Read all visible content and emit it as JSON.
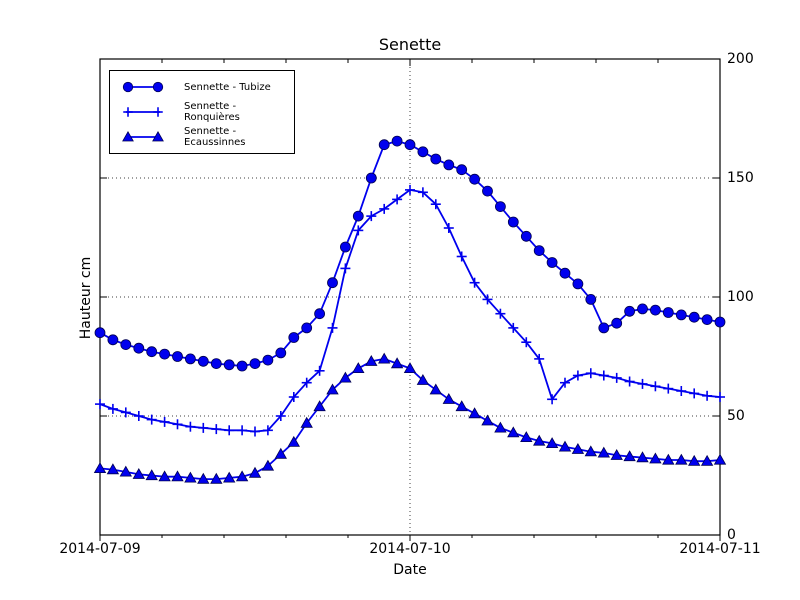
{
  "chart_data": {
    "type": "line",
    "title": "Senette",
    "xlabel": "Date",
    "ylabel": "Hauteur cm",
    "x_tick_labels": [
      "2014-07-09",
      "2014-07-10",
      "2014-07-11"
    ],
    "y_tick_labels": [
      "0",
      "50",
      "100",
      "150",
      "200"
    ],
    "ylim": [
      0,
      200
    ],
    "x_start": "2014-07-09 00:00",
    "x_step_hours": 1,
    "x_total_hours": 48,
    "grid": {
      "y_values": [
        50,
        100,
        150
      ],
      "x_gridline_at": "2014-07-10"
    },
    "legend_position": "upper-left",
    "line_color": "#0000ee",
    "marker_edge_color": "#000050",
    "series": [
      {
        "name": "Sennette - Tubize",
        "marker": "circle",
        "values": [
          85,
          82,
          80,
          78.5,
          77,
          76,
          75,
          74,
          73,
          72,
          71.5,
          71,
          72,
          73.5,
          76.5,
          83,
          87,
          93,
          106,
          121,
          134,
          150,
          164,
          165.5,
          164,
          161,
          158,
          155.5,
          153.5,
          149.5,
          144.5,
          138,
          131.5,
          125.5,
          119.5,
          114.5,
          110,
          105.5,
          99,
          87,
          89,
          94,
          95,
          94.5,
          93.5,
          92.5,
          91.5,
          90.5,
          89.5
        ]
      },
      {
        "name": "Sennette - Ronquières",
        "marker": "plus",
        "values": [
          55,
          53,
          51.5,
          50,
          48.5,
          47.5,
          46.5,
          45.5,
          45,
          44.5,
          44,
          44,
          43.5,
          44,
          50,
          58,
          64,
          69,
          87,
          112,
          128,
          134,
          137,
          141,
          145,
          144,
          139,
          129,
          117,
          106,
          99,
          93,
          87,
          81,
          74,
          57,
          64,
          67,
          68,
          67,
          66,
          64.5,
          63.5,
          62.5,
          61.5,
          60.5,
          59.5,
          58.5,
          58
        ]
      },
      {
        "name": "Sennette - Ecaussinnes",
        "marker": "triangle-up",
        "values": [
          28,
          27.5,
          26.5,
          25.5,
          25,
          24.5,
          24.5,
          24,
          23.5,
          23.5,
          24,
          24.5,
          26,
          29,
          34,
          39,
          47,
          54,
          61,
          66,
          70,
          73,
          74,
          72,
          70,
          65,
          61,
          57,
          54,
          51,
          48,
          45,
          43,
          41,
          39.5,
          38.5,
          37,
          36,
          35,
          34.5,
          33.5,
          33,
          32.5,
          32,
          31.5,
          31.5,
          31,
          31,
          31.5
        ]
      }
    ]
  }
}
